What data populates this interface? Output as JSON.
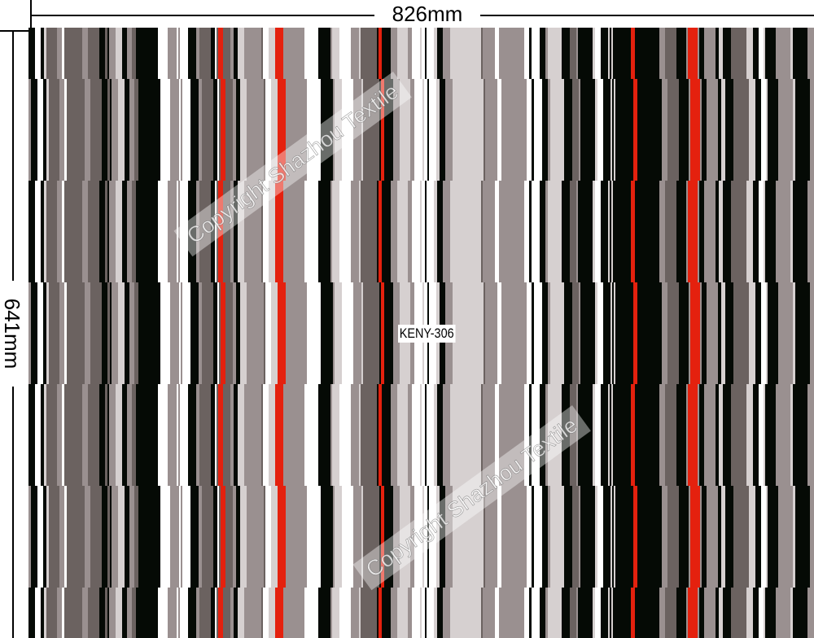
{
  "dimensions": {
    "width_label": "826mm",
    "height_label": "641mm"
  },
  "pattern": {
    "code": "KENY-306",
    "palette": {
      "black": "#050a05",
      "dark_gray": "#6b6260",
      "mid_gray": "#9a9090",
      "light_gray": "#d6d0d0",
      "white": "#ffffff",
      "red": "#e4210e"
    }
  },
  "watermark": {
    "text": "Copyright Shazhou Textile"
  }
}
